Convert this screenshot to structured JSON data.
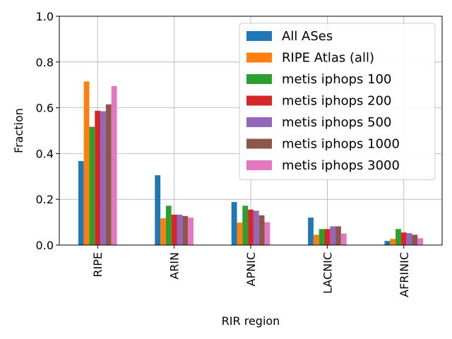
{
  "chart_data": {
    "type": "bar",
    "title": "",
    "xlabel": "RIR region",
    "ylabel": "Fraction",
    "ylim": [
      0,
      1.0
    ],
    "yticks": [
      "0.0",
      "0.2",
      "0.4",
      "0.6",
      "0.8",
      "1.0"
    ],
    "grid": true,
    "legend_position": "top-right",
    "categories": [
      "RIPE",
      "ARIN",
      "APNIC",
      "LACNIC",
      "AFRINIC"
    ],
    "series": [
      {
        "name": "All ASes",
        "color": "#1f77b4",
        "values": [
          0.367,
          0.305,
          0.188,
          0.12,
          0.018
        ]
      },
      {
        "name": "RIPE Atlas (all)",
        "color": "#ff7f0e",
        "values": [
          0.715,
          0.117,
          0.098,
          0.045,
          0.027
        ]
      },
      {
        "name": "metis iphops 100",
        "color": "#2ca02c",
        "values": [
          0.517,
          0.172,
          0.172,
          0.07,
          0.07
        ]
      },
      {
        "name": "metis iphops 200",
        "color": "#d62728",
        "values": [
          0.587,
          0.133,
          0.155,
          0.07,
          0.055
        ]
      },
      {
        "name": "metis iphops 500",
        "color": "#9467bd",
        "values": [
          0.585,
          0.133,
          0.15,
          0.082,
          0.052
        ]
      },
      {
        "name": "metis iphops 1000",
        "color": "#8c564b",
        "values": [
          0.615,
          0.127,
          0.13,
          0.082,
          0.045
        ]
      },
      {
        "name": "metis iphops 3000",
        "color": "#e377c2",
        "values": [
          0.695,
          0.12,
          0.1,
          0.05,
          0.03
        ]
      }
    ]
  }
}
